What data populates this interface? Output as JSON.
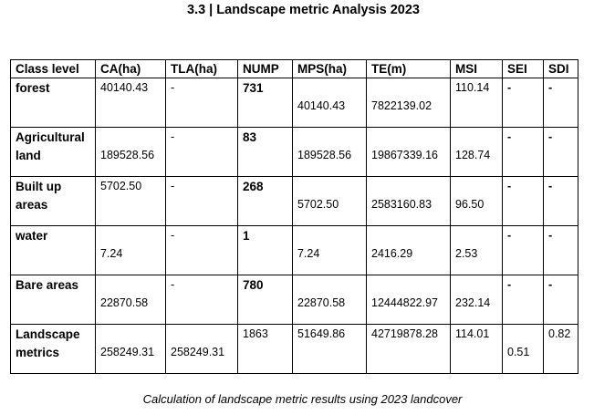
{
  "title": "3.3 | Landscape metric Analysis 2023",
  "caption": "Calculation of landscape metric results using 2023 landcover",
  "table": {
    "headers": [
      "Class level",
      "CA(ha)",
      "TLA(ha)",
      "NUMP",
      "MPS(ha)",
      "TE(m)",
      "MSI",
      "SEI",
      "SDI"
    ],
    "rows": [
      {
        "class": "forest",
        "ca": "40140.43",
        "tla": "-",
        "nump": "731",
        "mps": "40140.43",
        "te": "7822139.02",
        "msi": "110.14",
        "sei": "-",
        "sdi": "-"
      },
      {
        "class": "Agricultural land",
        "ca": "189528.56",
        "tla": "-",
        "nump": "83",
        "mps": "189528.56",
        "te": "19867339.16",
        "msi": "128.74",
        "sei": "-",
        "sdi": "-"
      },
      {
        "class": "Built up areas",
        "ca": "5702.50",
        "tla": "-",
        "nump": "268",
        "mps": "5702.50",
        "te": "2583160.83",
        "msi": "96.50",
        "sei": "-",
        "sdi": "-"
      },
      {
        "class": "water",
        "ca": "7.24",
        "tla": "-",
        "nump": "1",
        "mps": "7.24",
        "te": "2416.29",
        "msi": "2.53",
        "sei": "-",
        "sdi": "-"
      },
      {
        "class": "Bare areas",
        "ca": "22870.58",
        "tla": "-",
        "nump": "780",
        "mps": "22870.58",
        "te": "12444822.97",
        "msi": "232.14",
        "sei": "-",
        "sdi": "-"
      },
      {
        "class": "Landscape metrics",
        "ca": "258249.31",
        "tla": "258249.31",
        "nump": "1863",
        "mps": "51649.86",
        "te": "42719878.28",
        "msi": "114.01",
        "sei": "0.51",
        "sdi": "0.82"
      }
    ]
  }
}
